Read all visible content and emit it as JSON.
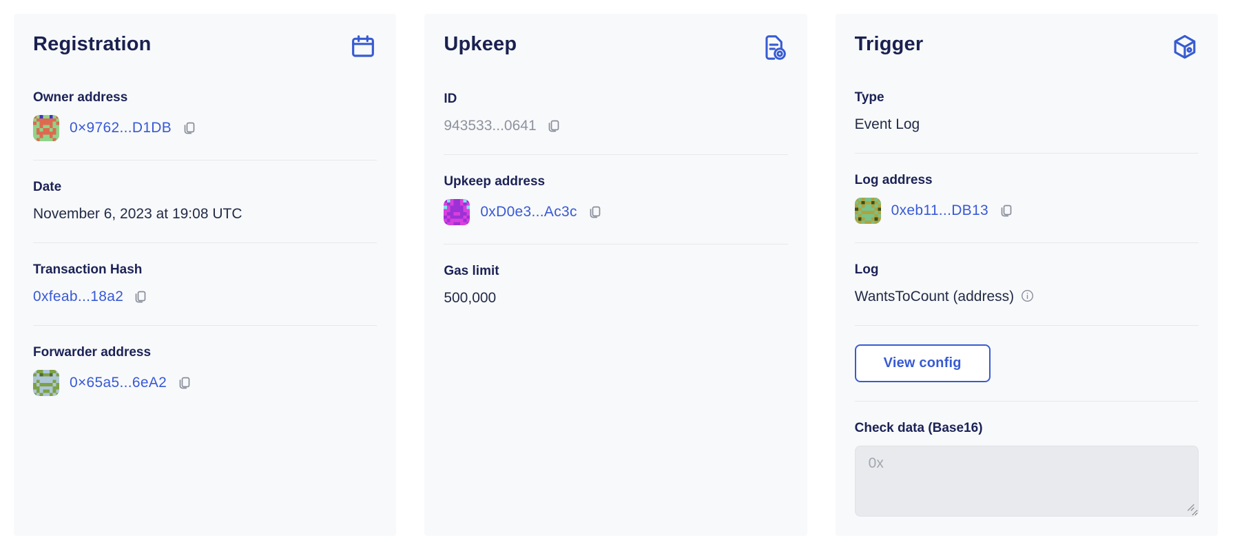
{
  "colors": {
    "brand_blue": "#375bd2",
    "link_blue": "#3759d6",
    "heading_navy": "#1a2150",
    "label_navy": "#1b2256",
    "text_dark": "#222b47",
    "muted_gray": "#8e929f",
    "icon_gray": "#898d9b",
    "card_bg": "#f8f9fa",
    "divider": "#e7e8eb",
    "input_bg": "#e9eaed"
  },
  "registration": {
    "title": "Registration",
    "owner_label": "Owner address",
    "owner_address": "0×9762...D1DB",
    "date_label": "Date",
    "date_value": "November 6, 2023 at 19:08 UTC",
    "tx_label": "Transaction Hash",
    "tx_hash": "0xfeab...18a2",
    "forwarder_label": "Forwarder address",
    "forwarder_address": "0×65a5...6eA2"
  },
  "upkeep": {
    "title": "Upkeep",
    "id_label": "ID",
    "id_value": "943533...0641",
    "address_label": "Upkeep address",
    "address": "0xD0e3...Ac3c",
    "gas_label": "Gas limit",
    "gas_value": "500,000"
  },
  "trigger": {
    "title": "Trigger",
    "type_label": "Type",
    "type_value": "Event Log",
    "log_address_label": "Log address",
    "log_address": "0xeb11...DB13",
    "log_label": "Log",
    "log_value": "WantsToCount (address)",
    "view_config_label": "View config",
    "check_data_label": "Check data (Base16)",
    "check_data_placeholder": "0x"
  },
  "icons": {
    "registration_header": "calendar-icon",
    "upkeep_header": "document-gear-icon",
    "trigger_header": "cube-icon",
    "copy": "copy-icon",
    "info": "info-icon"
  },
  "avatars": {
    "owner": {
      "bg": "#8fd489",
      "primary": "#dd6a50",
      "secondary": "#3b35cb",
      "rows": [
        "1.2..2.1",
        ".111111.",
        "1.1111.1",
        "..1..1..",
        ".1.11.1.",
        ".111111.",
        "..1..1..",
        ".1....1."
      ]
    },
    "forwarder": {
      "bg": "#aec6d8",
      "primary": "#7da144",
      "secondary": "#4f6b2a",
      "rows": [
        ".11..11.",
        "1.2112.1",
        "........",
        ".1....1.",
        "1.1111.1",
        "11....11",
        ".1.11.1.",
        "1.1..1.1"
      ]
    },
    "upkeep_contract": {
      "bg": "#d83fdd",
      "primary": "#9c31d6",
      "secondary": "#7ce6ee",
      "rows": [
        "12.11.21",
        ".1.11.1.",
        "2.1111.2",
        "..1111..",
        ".11..11.",
        "1.1111.1",
        ".1....1.",
        "1..11..1"
      ]
    },
    "log_contract": {
      "bg": "#b2a23c",
      "primary": "#79c289",
      "secondary": "#394f1c",
      "rows": [
        ".1.11.1.",
        "1.2..2.1",
        ".1.11.1.",
        "2.1111.2",
        ".1....1.",
        "1.1111.1",
        ".2.11.2.",
        "1.1..1.1"
      ]
    }
  }
}
